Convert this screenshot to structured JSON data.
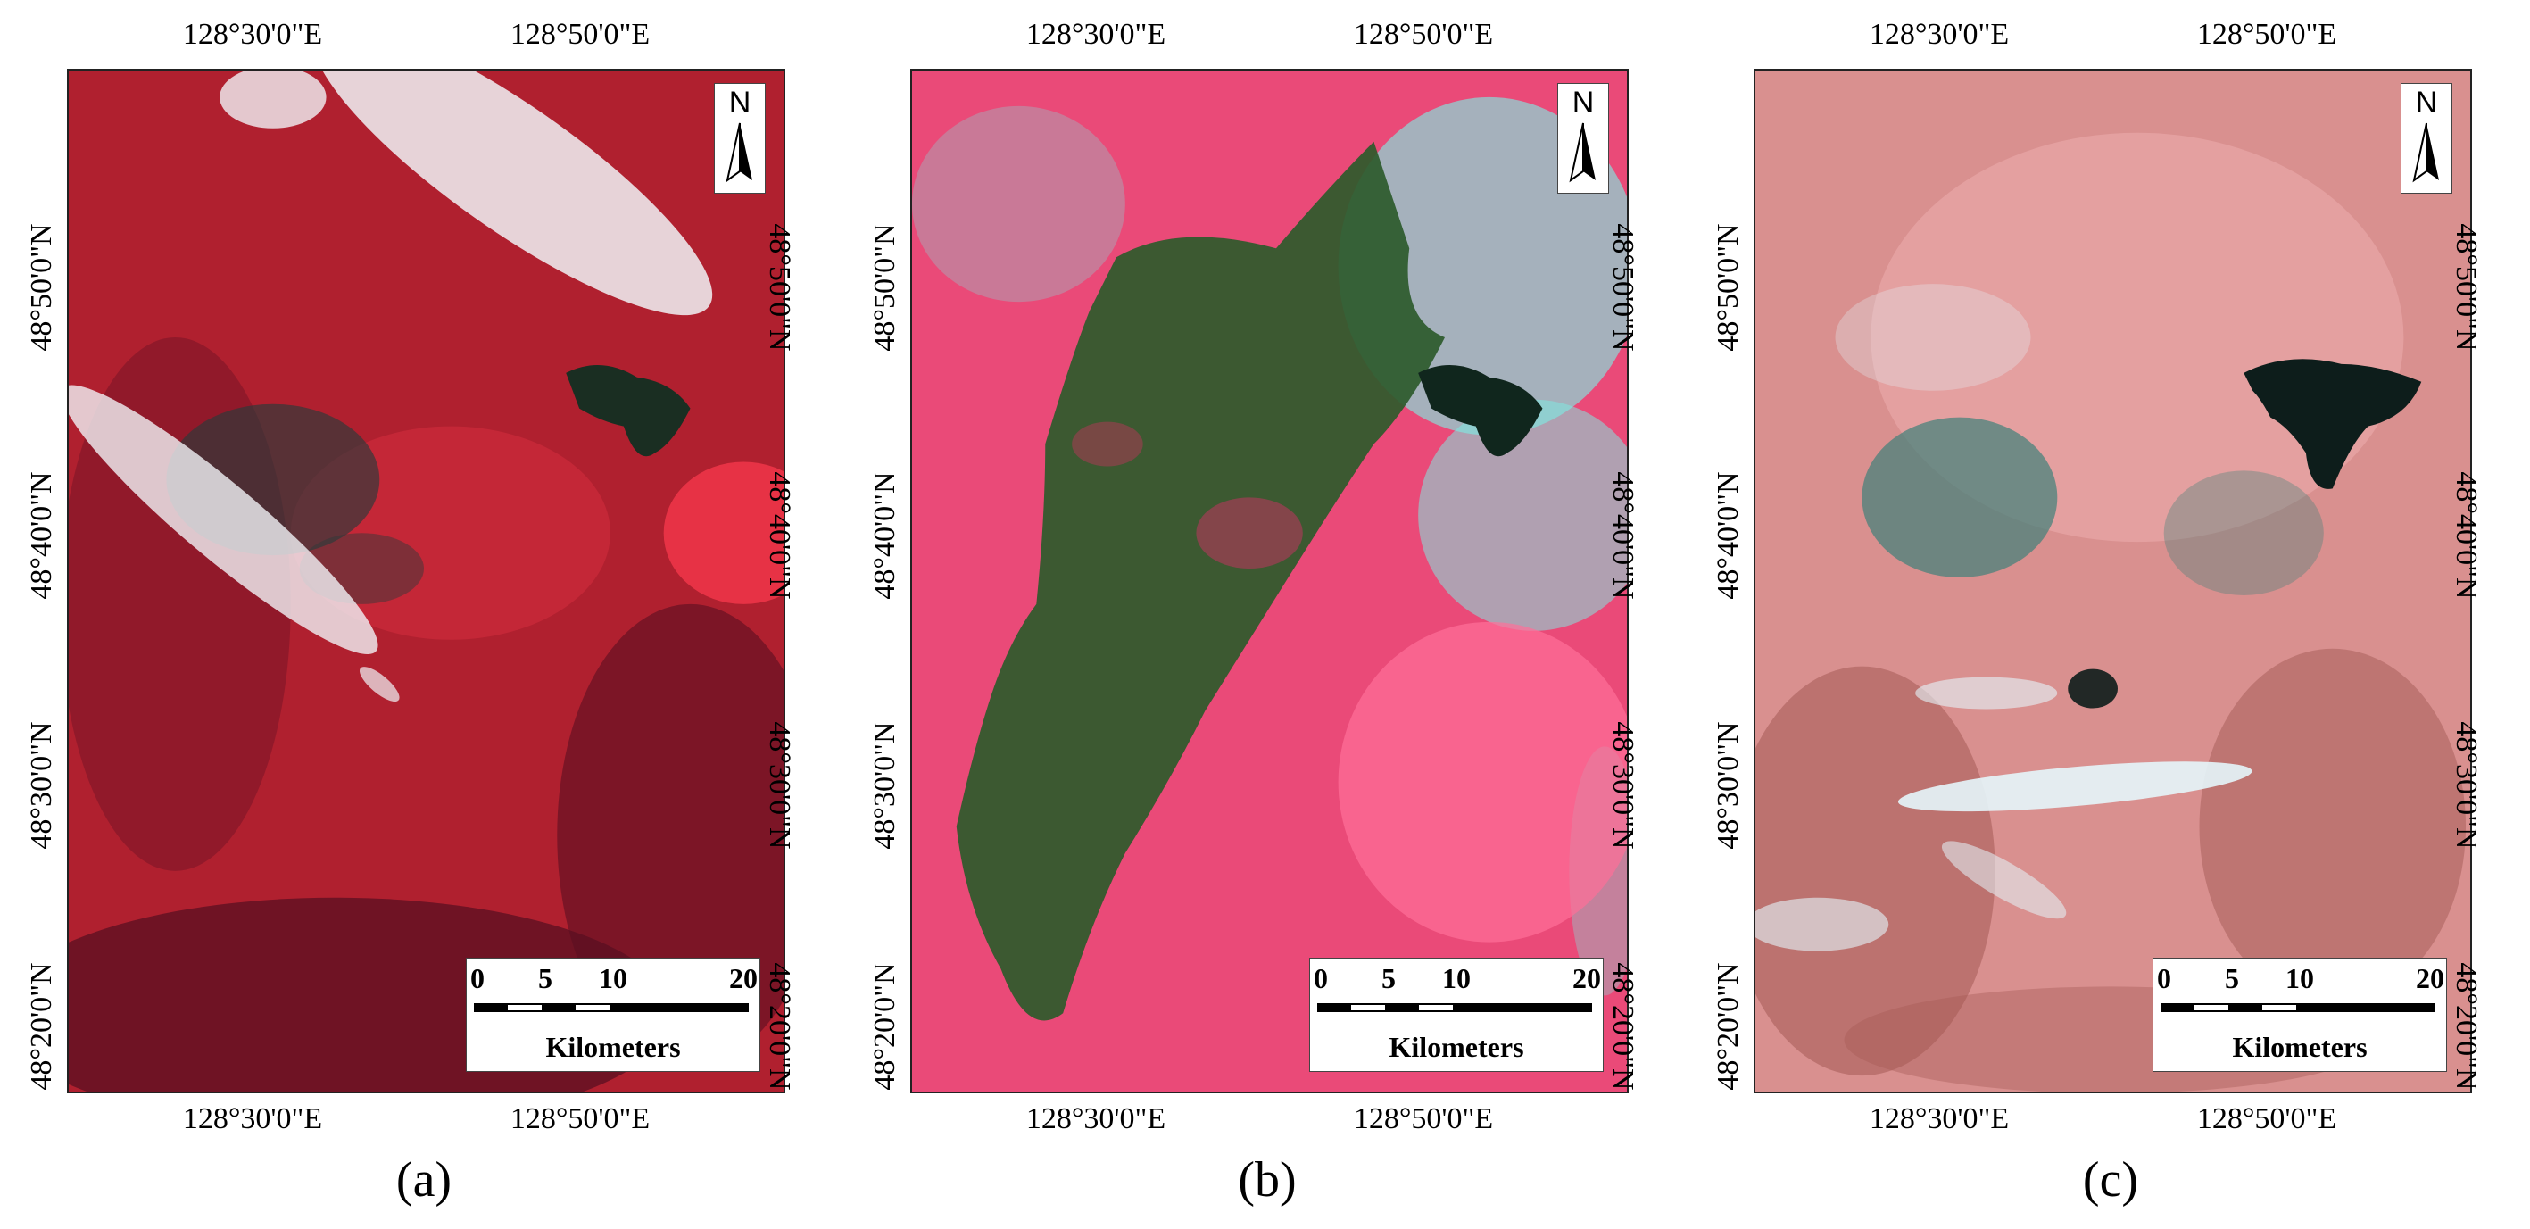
{
  "panels": [
    {
      "id": "a",
      "caption_open": "(",
      "caption_letter": "a",
      "caption_close": ")",
      "palette": {
        "base": "#b0202f",
        "dark": "#5a0f22",
        "bright": "#ff3b4f",
        "water": "#1a2e22",
        "burn": "#2a3a3a",
        "cloud": "#f1f3f6"
      }
    },
    {
      "id": "b",
      "caption_open": "(",
      "caption_letter": "b",
      "caption_close": ")",
      "palette": {
        "base": "#ea4a78",
        "dark": "#c0345e",
        "bright": "#ff6f98",
        "water": "#10261d",
        "burn": "#2d5a2b",
        "cloud": "#7fe8e0"
      }
    },
    {
      "id": "c",
      "caption_open": "(",
      "caption_letter": "c",
      "caption_close": ")",
      "palette": {
        "base": "#d9908f",
        "dark": "#a45a55",
        "bright": "#f2b3b5",
        "water": "#0d1d1b",
        "burn": "#3f8079",
        "cloud": "#e4f6fb"
      }
    }
  ],
  "graticule": {
    "lon_labels": [
      "128°30'0\"E",
      "128°50'0\"E"
    ],
    "lat_labels": [
      "48°50'0\"N",
      "48°40'0\"N",
      "48°30'0\"N",
      "48°20'0\"N"
    ]
  },
  "north_arrow": {
    "letter": "N"
  },
  "scale_bar": {
    "ticks": [
      "0",
      "5",
      "10",
      "20"
    ],
    "unit": "Kilometers"
  }
}
